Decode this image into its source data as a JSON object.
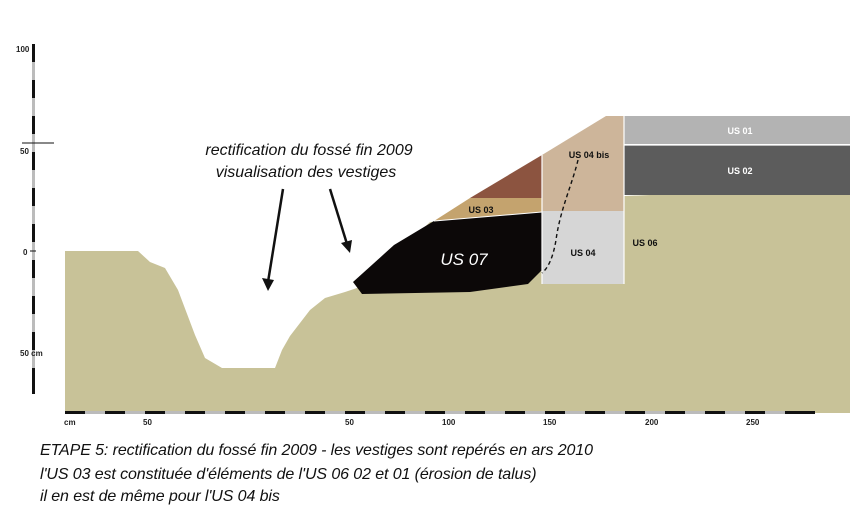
{
  "vertical_scale": {
    "ticks": [
      {
        "label": "100"
      },
      {
        "label": "50"
      },
      {
        "label": "0"
      },
      {
        "label": "50 cm"
      }
    ]
  },
  "horizontal_scale": {
    "ticks": [
      {
        "label": "cm"
      },
      {
        "label": "50"
      },
      {
        "label": "50"
      },
      {
        "label": "100"
      },
      {
        "label": "150"
      },
      {
        "label": "200"
      },
      {
        "label": "250"
      }
    ]
  },
  "layers": {
    "us01": {
      "label": "US 01",
      "color": "#b3b3b3"
    },
    "us02": {
      "label": "US 02",
      "color": "#5c5c5c"
    },
    "us03": {
      "label": "US 03",
      "color": "#c4a36e"
    },
    "us04": {
      "label": "US 04",
      "color": "#d6d6d6"
    },
    "us04bis": {
      "label": "US 04 bis",
      "color": "#cdb59a"
    },
    "us06": {
      "label": "US 06",
      "color": "#c8c298"
    },
    "us07": {
      "label": "US 07",
      "color": "#0c0808"
    },
    "eroded_brown": {
      "color": "#8c5440"
    }
  },
  "annotation": {
    "line1": "rectification du fossé fin 2009",
    "line2": "visualisation des vestiges"
  },
  "caption": {
    "line1": "ETAPE  5: rectification du fossé fin 2009 - les vestiges sont repérés en ars 2010",
    "line2": "l'US 03 est constituée d'éléments de l'US 06 02 et 01 (érosion de talus)",
    "line3": "il en est de même pour l'US 04 bis"
  }
}
